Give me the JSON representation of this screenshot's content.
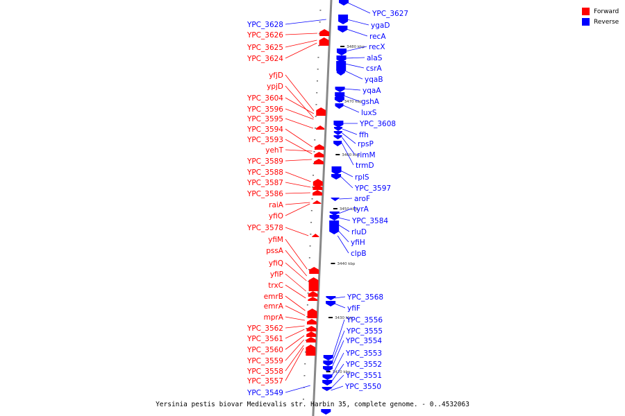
{
  "legend": {
    "forward_label": "Forward",
    "reverse_label": "Reverse",
    "forward_color": "#ff0000",
    "reverse_color": "#0000ff"
  },
  "caption": "Yersinia pestis biovar Medievalis str. Harbin 35, complete genome. - 0..4532063",
  "kbp_ticks": [
    "3480 kbp",
    "3470 kbp",
    "3460 kbp",
    "3450 kbp",
    "3440 kbp",
    "3430 kbp",
    "3420 kbp"
  ],
  "forward_genes": [
    "YPC_3626",
    "YPC_3625",
    "YPC_3624",
    "yfjD",
    "ypjD",
    "YPC_3604",
    "YPC_3596",
    "YPC_3595",
    "YPC_3594",
    "YPC_3593",
    "yehT",
    "YPC_3589",
    "YPC_3588",
    "YPC_3587",
    "YPC_3586",
    "raiA",
    "yfiO",
    "YPC_3578",
    "yfiM",
    "pssA",
    "yfiQ",
    "yfiP",
    "trxC",
    "emrB",
    "emrA",
    "mprA",
    "YPC_3562",
    "YPC_3561",
    "YPC_3560",
    "YPC_3559",
    "YPC_3558",
    "YPC_3557"
  ],
  "reverse_genes_left": [
    "YPC_3628",
    "YPC_3549"
  ],
  "reverse_genes_right": [
    "YPC_3627",
    "ygaD",
    "recA",
    "recX",
    "alaS",
    "csrA",
    "yqaB",
    "yqaA",
    "gshA",
    "luxS",
    "YPC_3608",
    "ffh",
    "rpsP",
    "rimM",
    "trmD",
    "rplS",
    "YPC_3597",
    "aroF",
    "tyrA",
    "YPC_3584",
    "rluD",
    "yfiH",
    "clpB",
    "YPC_3568",
    "yfiF",
    "YPC_3556",
    "YPC_3555",
    "YPC_3554",
    "YPC_3553",
    "YPC_3552",
    "YPC_3551",
    "YPC_3550"
  ]
}
